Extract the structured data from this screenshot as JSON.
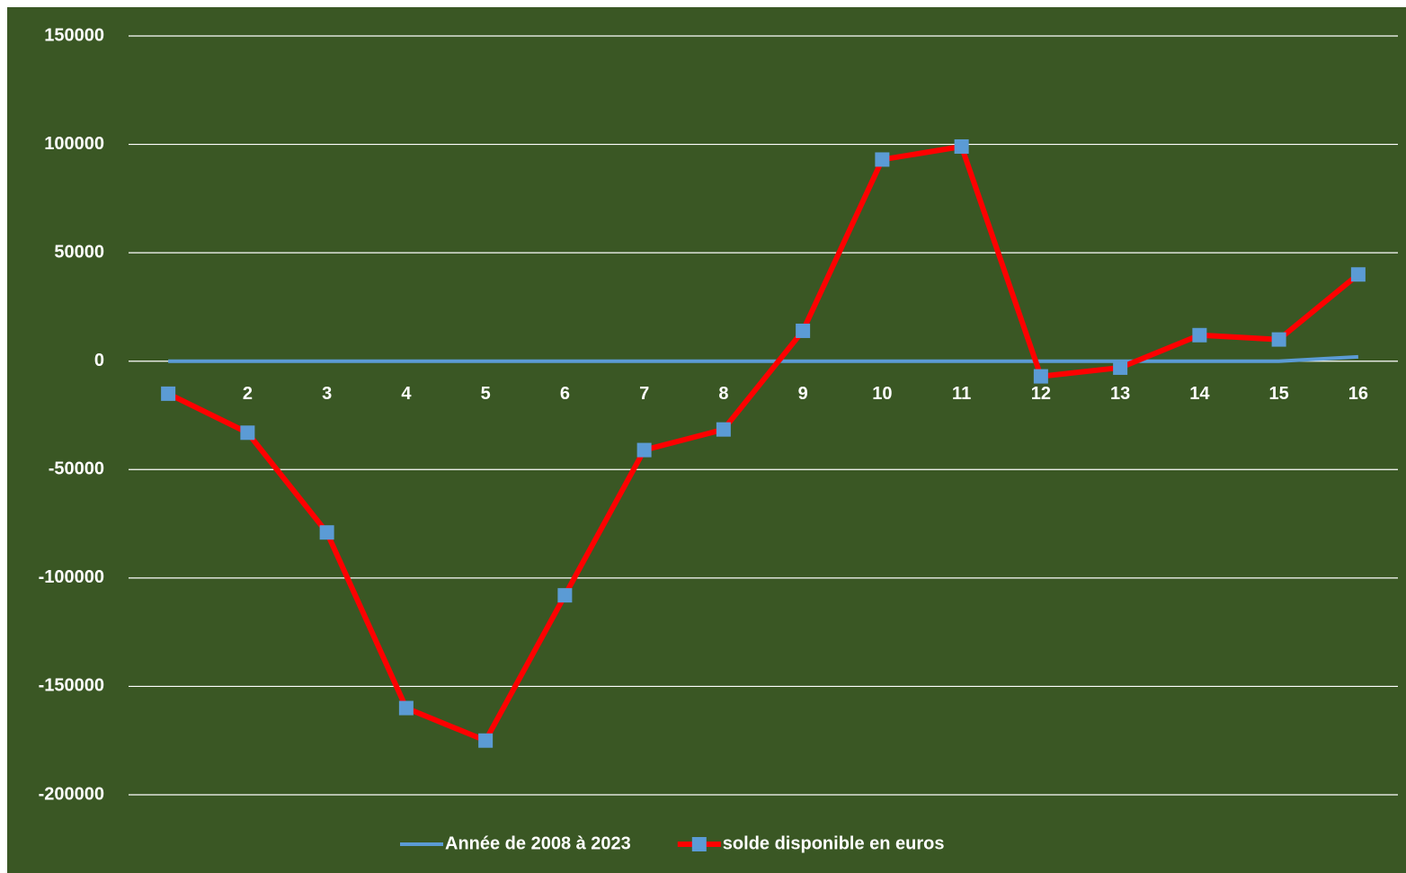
{
  "chart_data": {
    "type": "line",
    "categories": [
      "1",
      "2",
      "3",
      "4",
      "5",
      "6",
      "7",
      "8",
      "9",
      "10",
      "11",
      "12",
      "13",
      "14",
      "15",
      "16"
    ],
    "series": [
      {
        "name": "Année de 2008 à 2023",
        "color": "#5b9bd5",
        "values": [
          0,
          0,
          0,
          0,
          0,
          0,
          0,
          0,
          0,
          0,
          0,
          0,
          0,
          0,
          0,
          2000
        ]
      },
      {
        "name": "solde disponible en euros",
        "color": "#ff0000",
        "marker_color": "#5b9bd5",
        "values": [
          -15000,
          -33000,
          -79000,
          -160000,
          -175000,
          -108000,
          -41000,
          -31500,
          14000,
          93000,
          99000,
          -7000,
          -3000,
          12000,
          10000,
          40000
        ]
      }
    ],
    "ylim": [
      -200000,
      150000
    ],
    "yticks": [
      -200000,
      -150000,
      -100000,
      -50000,
      0,
      50000,
      100000,
      150000
    ],
    "grid": true,
    "legend": "bottom",
    "background": "#3a5724"
  }
}
